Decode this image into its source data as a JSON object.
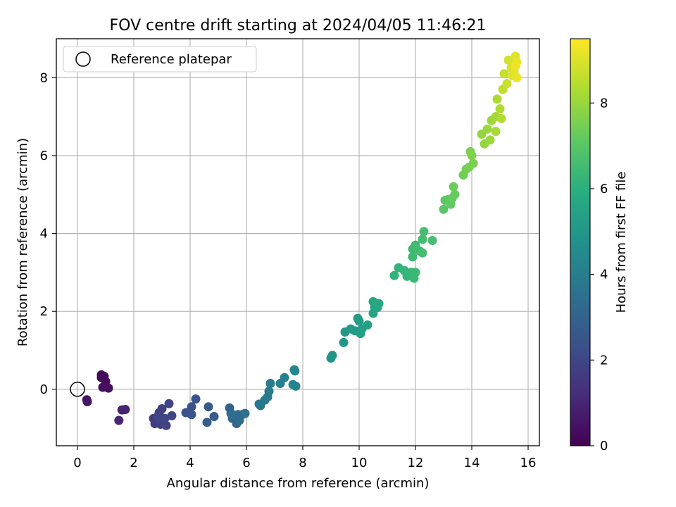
{
  "chart_data": {
    "type": "scatter",
    "title": "FOV centre drift starting at 2024/04/05 11:46:21",
    "xlabel": "Angular distance from reference (arcmin)",
    "ylabel": "Rotation from reference (arcmin)",
    "xlim": [
      -0.75,
      16.4
    ],
    "ylim": [
      -1.45,
      9.0
    ],
    "xticks": [
      0,
      2,
      4,
      6,
      8,
      10,
      12,
      14,
      16
    ],
    "yticks": [
      0,
      2,
      4,
      6,
      8
    ],
    "grid": true,
    "legend": {
      "entries": [
        "Reference platepar"
      ],
      "placement": "upper-left"
    },
    "reference_point": {
      "x": 0,
      "y": 0,
      "label": "Reference platepar"
    },
    "colorbar": {
      "label": "Hours from first FF file",
      "colormap": "viridis",
      "range": [
        0,
        9.5
      ],
      "ticks": [
        0,
        2,
        4,
        6,
        8
      ]
    },
    "points": [
      [
        0.85,
        0.37,
        0.2
      ],
      [
        0.95,
        0.33,
        0.25
      ],
      [
        1.0,
        0.2,
        0.3
      ],
      [
        0.9,
        0.05,
        0.35
      ],
      [
        1.1,
        0.03,
        0.4
      ],
      [
        0.85,
        0.3,
        0.2
      ],
      [
        0.33,
        -0.27,
        0.5
      ],
      [
        0.35,
        -0.32,
        0.55
      ],
      [
        1.58,
        -0.53,
        0.9
      ],
      [
        1.7,
        -0.52,
        0.95
      ],
      [
        1.47,
        -0.8,
        1.0
      ],
      [
        2.7,
        -0.75,
        1.6
      ],
      [
        2.75,
        -0.88,
        1.65
      ],
      [
        2.9,
        -0.6,
        1.7
      ],
      [
        3.0,
        -0.5,
        1.75
      ],
      [
        2.95,
        -0.9,
        1.8
      ],
      [
        3.15,
        -0.93,
        1.85
      ],
      [
        3.25,
        -0.37,
        1.9
      ],
      [
        3.1,
        -0.75,
        1.95
      ],
      [
        2.85,
        -0.7,
        2.0
      ],
      [
        3.35,
        -0.68,
        2.0
      ],
      [
        4.0,
        -0.6,
        2.4
      ],
      [
        4.05,
        -0.45,
        2.45
      ],
      [
        3.85,
        -0.6,
        2.5
      ],
      [
        4.2,
        -0.25,
        2.5
      ],
      [
        4.05,
        -0.65,
        2.55
      ],
      [
        4.65,
        -0.45,
        2.7
      ],
      [
        4.6,
        -0.85,
        2.75
      ],
      [
        4.85,
        -0.7,
        2.8
      ],
      [
        5.4,
        -0.48,
        3.0
      ],
      [
        5.45,
        -0.62,
        3.05
      ],
      [
        5.5,
        -0.75,
        3.1
      ],
      [
        5.65,
        -0.88,
        3.15
      ],
      [
        5.6,
        -0.7,
        3.2
      ],
      [
        5.7,
        -0.65,
        3.25
      ],
      [
        5.75,
        -0.8,
        3.3
      ],
      [
        5.85,
        -0.65,
        3.3
      ],
      [
        5.5,
        -0.65,
        3.35
      ],
      [
        5.95,
        -0.62,
        3.4
      ],
      [
        6.45,
        -0.38,
        3.7
      ],
      [
        6.5,
        -0.42,
        3.75
      ],
      [
        6.65,
        -0.28,
        3.8
      ],
      [
        6.75,
        -0.2,
        3.85
      ],
      [
        6.8,
        -0.05,
        3.9
      ],
      [
        6.85,
        0.15,
        3.95
      ],
      [
        7.2,
        0.15,
        4.1
      ],
      [
        7.35,
        0.3,
        4.15
      ],
      [
        7.65,
        0.12,
        4.25
      ],
      [
        7.75,
        0.08,
        4.3
      ],
      [
        7.7,
        0.5,
        4.3
      ],
      [
        7.72,
        0.47,
        4.35
      ],
      [
        9.0,
        0.8,
        4.85
      ],
      [
        9.05,
        0.87,
        4.9
      ],
      [
        9.45,
        1.2,
        5.0
      ],
      [
        9.5,
        1.47,
        5.05
      ],
      [
        9.7,
        1.55,
        5.1
      ],
      [
        9.85,
        1.5,
        5.15
      ],
      [
        10.0,
        1.75,
        5.2
      ],
      [
        9.95,
        1.82,
        5.25
      ],
      [
        10.1,
        1.55,
        5.25
      ],
      [
        10.05,
        1.43,
        5.3
      ],
      [
        10.3,
        1.65,
        5.35
      ],
      [
        10.5,
        1.95,
        5.5
      ],
      [
        10.55,
        2.1,
        5.55
      ],
      [
        10.5,
        2.25,
        5.6
      ],
      [
        10.65,
        2.1,
        5.65
      ],
      [
        10.7,
        2.2,
        5.7
      ],
      [
        11.25,
        2.92,
        6.1
      ],
      [
        11.4,
        3.12,
        6.15
      ],
      [
        11.6,
        3.05,
        6.2
      ],
      [
        11.7,
        2.9,
        6.25
      ],
      [
        11.85,
        3.0,
        6.3
      ],
      [
        11.95,
        2.85,
        6.35
      ],
      [
        12.0,
        3.0,
        6.35
      ],
      [
        11.9,
        3.4,
        6.4
      ],
      [
        11.9,
        3.6,
        6.45
      ],
      [
        12.0,
        3.7,
        6.5
      ],
      [
        12.15,
        3.55,
        6.5
      ],
      [
        12.25,
        3.85,
        6.55
      ],
      [
        12.3,
        4.05,
        6.6
      ],
      [
        12.25,
        3.5,
        6.6
      ],
      [
        12.6,
        3.82,
        6.65
      ],
      [
        13.0,
        4.62,
        7.0
      ],
      [
        13.05,
        4.85,
        7.05
      ],
      [
        13.15,
        4.87,
        7.1
      ],
      [
        13.25,
        4.75,
        7.15
      ],
      [
        13.3,
        4.9,
        7.2
      ],
      [
        13.4,
        5.0,
        7.25
      ],
      [
        13.35,
        5.2,
        7.3
      ],
      [
        13.7,
        5.5,
        7.4
      ],
      [
        13.8,
        5.65,
        7.45
      ],
      [
        13.9,
        5.7,
        7.5
      ],
      [
        14.05,
        5.8,
        7.55
      ],
      [
        13.95,
        6.1,
        7.6
      ],
      [
        14.0,
        6.0,
        7.65
      ],
      [
        14.35,
        6.55,
        7.9
      ],
      [
        14.45,
        6.3,
        7.95
      ],
      [
        14.55,
        6.68,
        8.0
      ],
      [
        14.65,
        6.4,
        8.05
      ],
      [
        14.7,
        6.9,
        8.1
      ],
      [
        14.85,
        7.0,
        8.15
      ],
      [
        14.85,
        6.62,
        8.2
      ],
      [
        14.9,
        7.45,
        8.25
      ],
      [
        15.0,
        7.2,
        8.3
      ],
      [
        15.05,
        6.95,
        8.35
      ],
      [
        15.1,
        7.7,
        8.6
      ],
      [
        15.15,
        8.1,
        8.7
      ],
      [
        15.25,
        7.85,
        8.75
      ],
      [
        15.3,
        8.45,
        8.85
      ],
      [
        15.4,
        8.25,
        8.9
      ],
      [
        15.45,
        8.05,
        9.0
      ],
      [
        15.5,
        8.15,
        9.05
      ],
      [
        15.55,
        8.55,
        9.1
      ],
      [
        15.6,
        8.4,
        9.15
      ],
      [
        15.6,
        8.0,
        9.2
      ],
      [
        15.55,
        8.3,
        9.25
      ]
    ]
  }
}
